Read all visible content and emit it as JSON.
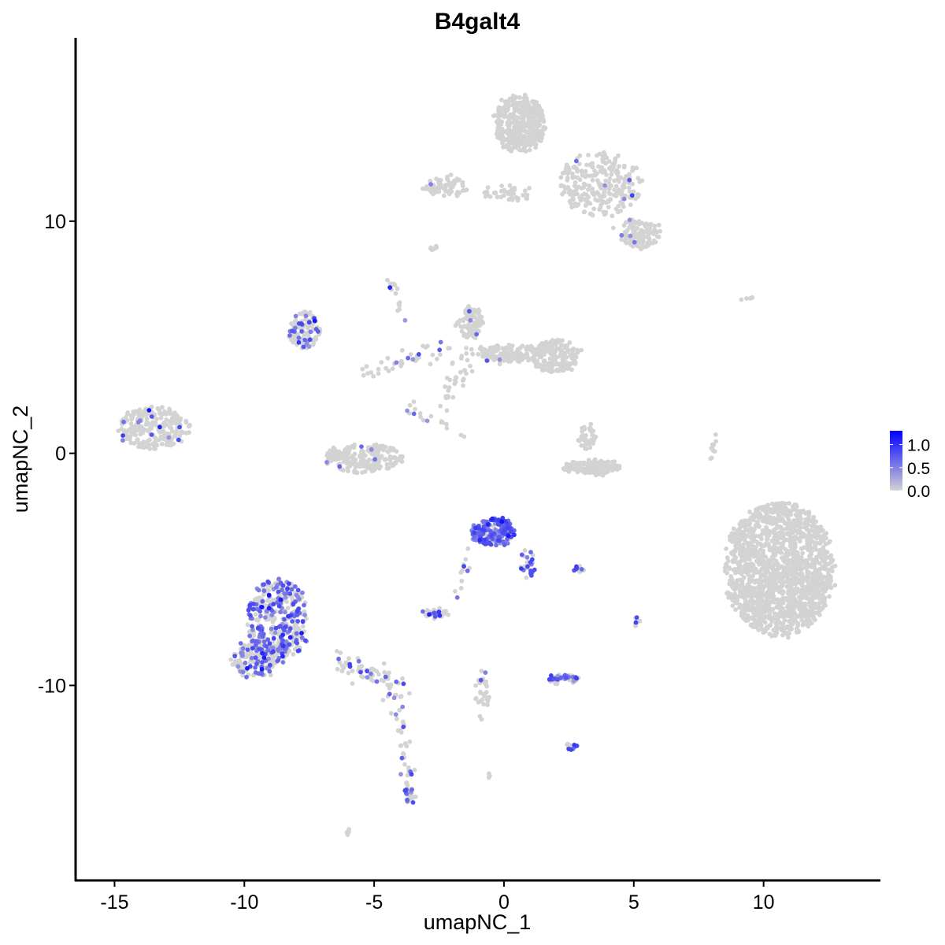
{
  "chart_data": {
    "type": "scatter",
    "title": "B4galt4",
    "xlabel": "umapNC_1",
    "ylabel": "umapNC_2",
    "xlim": [
      -16.5,
      14.5
    ],
    "ylim": [
      -18.4,
      17.9
    ],
    "x_ticks": [
      -15,
      -10,
      -5,
      0,
      5,
      10
    ],
    "x_tick_labels": [
      "-15",
      "-10",
      "-5",
      "0",
      "5",
      "10"
    ],
    "y_ticks": [
      -10,
      0,
      10
    ],
    "y_tick_labels": [
      "-10",
      "0",
      "10"
    ],
    "grid": false,
    "colors": {
      "low": "#d3d3d3",
      "high": "#0000ff"
    },
    "legend": {
      "position": "right",
      "range": [
        0,
        1.3
      ],
      "ticks": [
        0.0,
        0.5,
        1.0
      ],
      "labels": [
        "0.0",
        "0.5",
        "1.0"
      ]
    },
    "clusters": [
      {
        "cx": 10.6,
        "cy": -5.0,
        "rx": 2.1,
        "ry": 2.9,
        "n": 1500,
        "expr_frac": 0.0
      },
      {
        "cx": 0.6,
        "cy": 14.2,
        "rx": 1.0,
        "ry": 1.2,
        "n": 400,
        "expr_frac": 0.0
      },
      {
        "cx": 3.7,
        "cy": 11.6,
        "rx": 1.6,
        "ry": 1.4,
        "n": 260,
        "expr_frac": 0.02
      },
      {
        "cx": 5.3,
        "cy": 9.4,
        "rx": 0.8,
        "ry": 0.6,
        "n": 100,
        "expr_frac": 0.03
      },
      {
        "cx": -2.2,
        "cy": 11.5,
        "rx": 0.9,
        "ry": 0.45,
        "n": 70,
        "expr_frac": 0.02
      },
      {
        "cx": 0.2,
        "cy": 11.2,
        "rx": 1.0,
        "ry": 0.3,
        "n": 40,
        "expr_frac": 0.0
      },
      {
        "cx": -1.3,
        "cy": 5.6,
        "rx": 0.5,
        "ry": 0.7,
        "n": 90,
        "expr_frac": 0.05
      },
      {
        "cx": 2.0,
        "cy": 4.2,
        "rx": 0.9,
        "ry": 0.7,
        "n": 200,
        "expr_frac": 0.0
      },
      {
        "cx": 0.2,
        "cy": 4.3,
        "rx": 1.2,
        "ry": 0.4,
        "n": 120,
        "expr_frac": 0.02
      },
      {
        "cx": -7.7,
        "cy": 5.3,
        "rx": 0.6,
        "ry": 0.8,
        "n": 110,
        "expr_frac": 0.25
      },
      {
        "cx": -13.5,
        "cy": 1.1,
        "rx": 1.4,
        "ry": 0.9,
        "n": 230,
        "expr_frac": 0.06
      },
      {
        "cx": -5.4,
        "cy": -0.2,
        "rx": 1.5,
        "ry": 0.6,
        "n": 220,
        "expr_frac": 0.02
      },
      {
        "cx": 3.4,
        "cy": -0.6,
        "rx": 1.1,
        "ry": 0.3,
        "n": 140,
        "expr_frac": 0.0
      },
      {
        "cx": 3.2,
        "cy": 0.7,
        "rx": 0.3,
        "ry": 0.6,
        "n": 40,
        "expr_frac": 0.0
      },
      {
        "cx": -0.4,
        "cy": -3.4,
        "rx": 0.8,
        "ry": 0.6,
        "n": 180,
        "expr_frac": 0.85
      },
      {
        "cx": 0.9,
        "cy": -4.8,
        "rx": 0.3,
        "ry": 0.6,
        "n": 30,
        "expr_frac": 0.6
      },
      {
        "cx": -8.7,
        "cy": -7.2,
        "rx": 1.2,
        "ry": 1.8,
        "n": 380,
        "expr_frac": 0.45
      },
      {
        "cx": -9.6,
        "cy": -8.9,
        "rx": 0.9,
        "ry": 0.8,
        "n": 160,
        "expr_frac": 0.3
      },
      {
        "cx": -2.6,
        "cy": -6.9,
        "rx": 0.5,
        "ry": 0.2,
        "n": 40,
        "expr_frac": 0.3
      },
      {
        "cx": 2.2,
        "cy": -9.7,
        "rx": 0.7,
        "ry": 0.2,
        "n": 45,
        "expr_frac": 0.35
      },
      {
        "cx": 2.6,
        "cy": -12.6,
        "rx": 0.2,
        "ry": 0.15,
        "n": 12,
        "expr_frac": 0.2
      },
      {
        "cx": 2.9,
        "cy": -5.0,
        "rx": 0.3,
        "ry": 0.1,
        "n": 10,
        "expr_frac": 0.6
      },
      {
        "cx": 5.1,
        "cy": -7.3,
        "rx": 0.1,
        "ry": 0.4,
        "n": 8,
        "expr_frac": 0.4
      },
      {
        "cx": -0.8,
        "cy": -10.5,
        "rx": 0.3,
        "ry": 1.2,
        "n": 35,
        "expr_frac": 0.05
      },
      {
        "cx": -3.6,
        "cy": -14.7,
        "rx": 0.2,
        "ry": 0.4,
        "n": 20,
        "expr_frac": 0.6
      },
      {
        "cx": -0.6,
        "cy": -13.9,
        "rx": 0.1,
        "ry": 0.1,
        "n": 3,
        "expr_frac": 0.0
      },
      {
        "cx": -6.0,
        "cy": -16.3,
        "rx": 0.1,
        "ry": 0.1,
        "n": 4,
        "expr_frac": 0.0
      },
      {
        "cx": 9.4,
        "cy": 6.7,
        "rx": 0.2,
        "ry": 0.1,
        "n": 4,
        "expr_frac": 0.0
      }
    ],
    "paths": [
      {
        "x0": -6.4,
        "y0": -8.7,
        "x1": -3.9,
        "y1": -10.3,
        "n": 70,
        "spread": 0.25,
        "expr_frac": 0.25
      },
      {
        "x0": -4.2,
        "y0": -10.5,
        "x1": -3.6,
        "y1": -14.6,
        "n": 35,
        "spread": 0.15,
        "expr_frac": 0.15
      },
      {
        "x0": -5.4,
        "y0": 3.4,
        "x1": -2.3,
        "y1": 4.6,
        "n": 40,
        "spread": 0.2,
        "expr_frac": 0.2
      },
      {
        "x0": -2.3,
        "y0": 2.2,
        "x1": -1.2,
        "y1": 4.6,
        "n": 35,
        "spread": 0.2,
        "expr_frac": 0.0
      },
      {
        "x0": -4.4,
        "y0": 7.6,
        "x1": -3.8,
        "y1": 5.7,
        "n": 15,
        "spread": 0.1,
        "expr_frac": 0.15
      },
      {
        "x0": -3.8,
        "y0": 2.0,
        "x1": -1.6,
        "y1": 0.9,
        "n": 18,
        "spread": 0.15,
        "expr_frac": 0.1
      },
      {
        "x0": -1.4,
        "y0": -4.0,
        "x1": -1.8,
        "y1": -6.2,
        "n": 12,
        "spread": 0.1,
        "expr_frac": 0.5
      },
      {
        "x0": -2.8,
        "y0": 8.8,
        "x1": -2.5,
        "y1": 9.0,
        "n": 6,
        "spread": 0.05,
        "expr_frac": 0.0
      },
      {
        "x0": 8.2,
        "y0": 0.9,
        "x1": 7.9,
        "y1": -0.4,
        "n": 10,
        "spread": 0.05,
        "expr_frac": 0.0
      },
      {
        "x0": 4.3,
        "y0": 10.1,
        "x1": 5.0,
        "y1": 9.0,
        "n": 10,
        "spread": 0.2,
        "expr_frac": 0.1
      }
    ]
  }
}
